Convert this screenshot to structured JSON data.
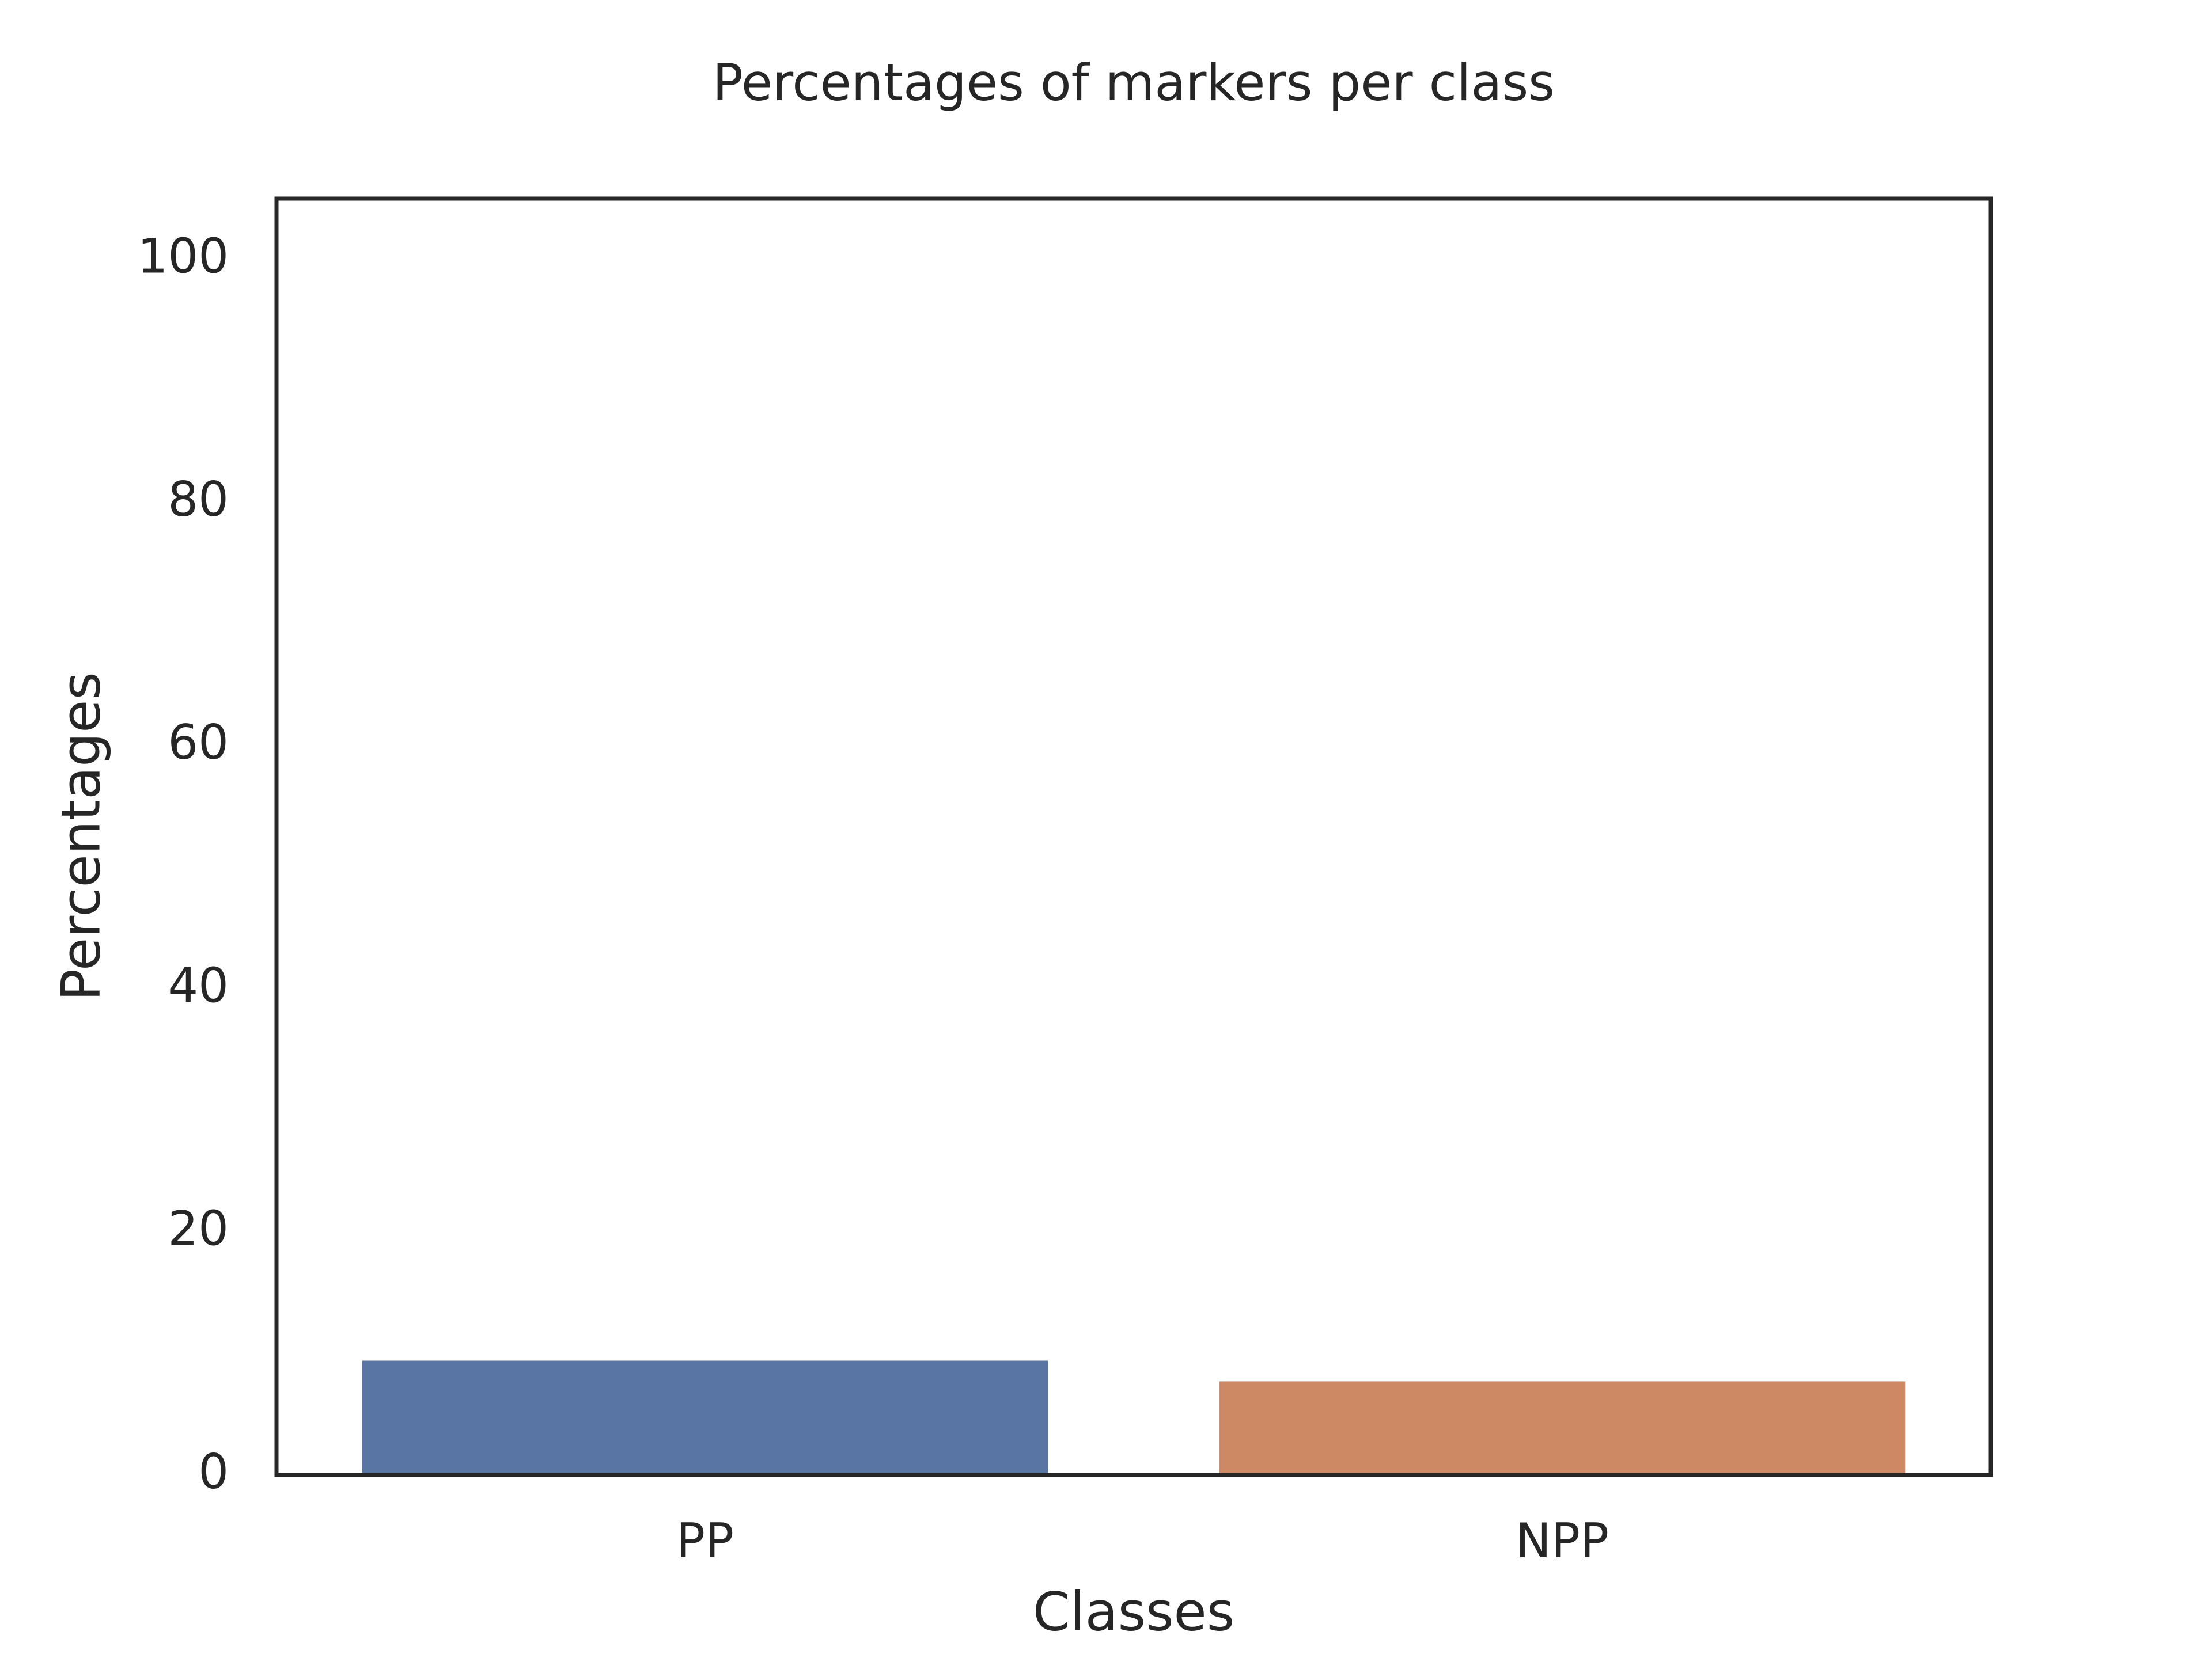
{
  "chart_data": {
    "type": "bar",
    "title": "Percentages of markers per class",
    "x_label": "Classes",
    "y_label": "Percentages",
    "categories": [
      "PP",
      "NPP"
    ],
    "series": [
      {
        "name": "Percentages",
        "colors": [
          "#5975a4",
          "#cc8963"
        ],
        "values": [
          9.4,
          7.7
        ]
      }
    ],
    "ylim": [
      0,
      105
    ],
    "yticks": [
      0,
      20,
      40,
      60,
      80,
      100
    ],
    "grid": false
  }
}
